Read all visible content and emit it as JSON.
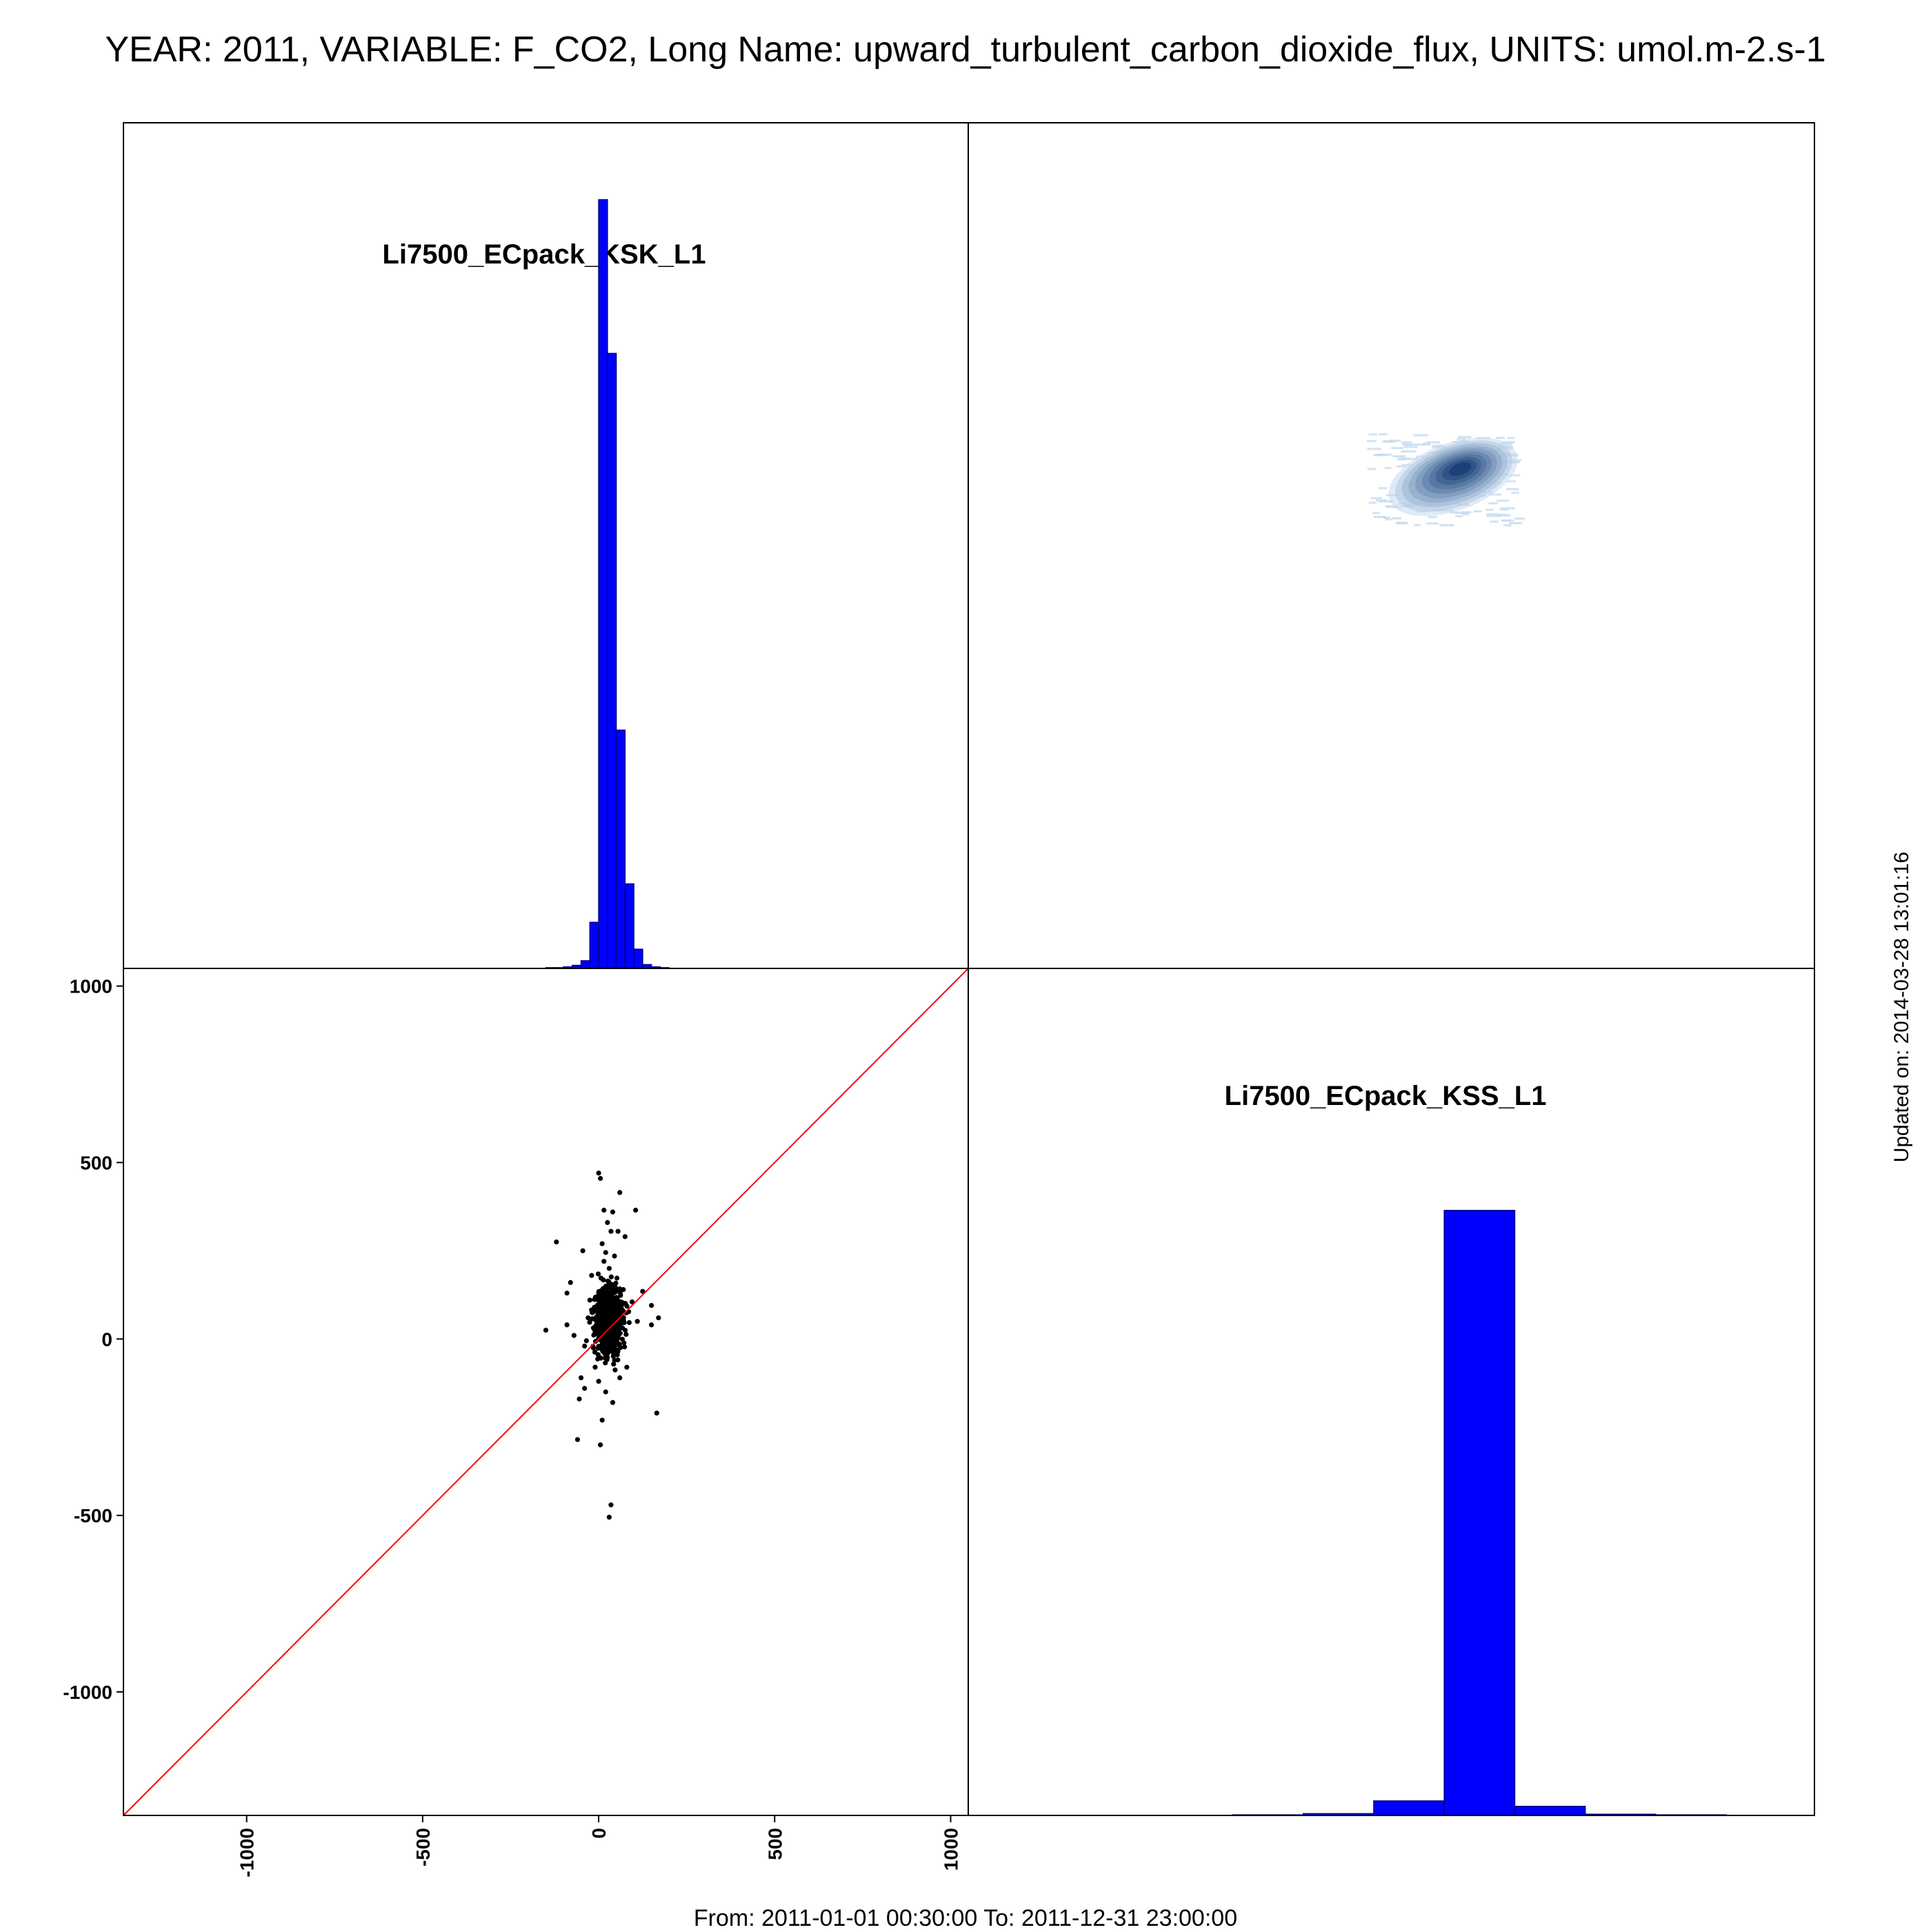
{
  "header": {
    "title": "YEAR: 2011, VARIABLE: F_CO2, Long Name: upward_turbulent_carbon_dioxide_flux, UNITS: umol.m-2.s-1"
  },
  "footer": {
    "date_range": "From: 2011-01-01 00:30:00 To: 2011-12-31 23:00:00",
    "updated_on": "Updated on: 2014-03-28 13:01:16"
  },
  "colors": {
    "histogram_fill": "#0000ff",
    "histogram_edge": "#000080",
    "scatter_points": "#000000",
    "identity_line": "#ff0000",
    "density_low": "#c6dbef",
    "density_high": "#08306b",
    "frame": "#000000"
  },
  "chart_data": [
    {
      "panel": "top-left",
      "type": "bar",
      "title": "Li7500_ECpack_KSK_L1",
      "x": [
        -150,
        -125,
        -100,
        -75,
        -50,
        -25,
        0,
        25,
        50,
        75,
        100,
        125,
        150,
        175
      ],
      "values": [
        0.001,
        0.001,
        0.002,
        0.004,
        0.01,
        0.06,
        1.0,
        0.8,
        0.31,
        0.11,
        0.025,
        0.005,
        0.002,
        0.001
      ],
      "xlim": [
        -1350,
        1050
      ],
      "ylim": [
        0,
        1.1
      ],
      "grid": false
    },
    {
      "panel": "top-right",
      "type": "heatmap",
      "x": [
        -100,
        -75,
        -50,
        -25,
        0,
        25,
        50,
        75,
        100,
        125,
        150
      ],
      "y": [
        -100,
        -75,
        -50,
        -25,
        0,
        25,
        50,
        75,
        100,
        125
      ],
      "xlim": [
        -1350,
        1050
      ],
      "ylim": [
        -1350,
        1050
      ],
      "grid": false
    },
    {
      "panel": "bottom-left",
      "type": "scatter",
      "xlim": [
        -1350,
        1050
      ],
      "ylim": [
        -1350,
        1050
      ],
      "x_ticks": [
        "-1000",
        "-500",
        "0",
        "500",
        "1000"
      ],
      "y_ticks": [
        "-1000",
        "-500",
        "0",
        "500",
        "1000"
      ],
      "identity_line": true,
      "points": [
        [
          0,
          470
        ],
        [
          5,
          455
        ],
        [
          60,
          415
        ],
        [
          105,
          365
        ],
        [
          15,
          365
        ],
        [
          40,
          360
        ],
        [
          25,
          330
        ],
        [
          35,
          305
        ],
        [
          55,
          305
        ],
        [
          75,
          290
        ],
        [
          -120,
          275
        ],
        [
          -45,
          250
        ],
        [
          10,
          270
        ],
        [
          20,
          245
        ],
        [
          45,
          235
        ],
        [
          -80,
          160
        ],
        [
          -90,
          130
        ],
        [
          -20,
          180
        ],
        [
          125,
          135
        ],
        [
          150,
          95
        ],
        [
          170,
          60
        ],
        [
          150,
          40
        ],
        [
          -150,
          25
        ],
        [
          -90,
          40
        ],
        [
          -70,
          10
        ],
        [
          -40,
          -20
        ],
        [
          -50,
          -110
        ],
        [
          -55,
          -170
        ],
        [
          -40,
          -140
        ],
        [
          0,
          -120
        ],
        [
          20,
          -150
        ],
        [
          40,
          -180
        ],
        [
          10,
          -230
        ],
        [
          -60,
          -285
        ],
        [
          5,
          -300
        ],
        [
          35,
          -470
        ],
        [
          30,
          -505
        ],
        [
          165,
          -210
        ],
        [
          80,
          -80
        ],
        [
          60,
          -110
        ],
        [
          -10,
          -80
        ],
        [
          30,
          200
        ],
        [
          15,
          220
        ],
        [
          70,
          140
        ],
        [
          95,
          105
        ],
        [
          -25,
          110
        ],
        [
          45,
          -60
        ],
        [
          -30,
          60
        ],
        [
          110,
          50
        ],
        [
          0,
          0
        ]
      ],
      "core": {
        "x_center": 30,
        "y_center": 50,
        "x_spread": 28,
        "y_spread": 70
      },
      "grid": false
    },
    {
      "panel": "bottom-right",
      "type": "bar",
      "title": "Li7500_ECpack_KSS_L1",
      "x": [
        -600,
        -400,
        -200,
        0,
        200,
        400,
        600
      ],
      "values": [
        0.001,
        0.003,
        0.024,
        1.0,
        0.015,
        0.002,
        0.001
      ],
      "xlim": [
        -1350,
        1050
      ],
      "ylim": [
        0,
        1.4
      ],
      "grid": false
    }
  ]
}
